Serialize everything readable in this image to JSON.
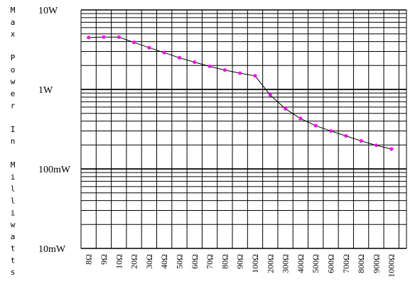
{
  "chart_data": {
    "type": "line",
    "title": "",
    "ylabel": "Max Power In Milliwatts",
    "y_scale": "log",
    "ylim": [
      "10mW",
      "10W"
    ],
    "y_ticks": [
      {
        "label": "10W",
        "value": 10
      },
      {
        "label": "1W",
        "value": 1
      },
      {
        "label": "100mW",
        "value": 0.1
      },
      {
        "label": "10mW",
        "value": 0.01
      }
    ],
    "grid": true,
    "categories": [
      "8Ω",
      "9Ω",
      "10Ω",
      "20Ω",
      "30Ω",
      "40Ω",
      "50Ω",
      "60Ω",
      "70Ω",
      "80Ω",
      "90Ω",
      "100Ω",
      "200Ω",
      "300Ω",
      "400Ω",
      "500Ω",
      "600Ω",
      "700Ω",
      "800Ω",
      "900Ω",
      "1000Ω"
    ],
    "series": [
      {
        "values": [
          4.5,
          4.55,
          4.55,
          3.9,
          3.35,
          2.9,
          2.5,
          2.2,
          1.95,
          1.75,
          1.6,
          1.48,
          0.85,
          0.57,
          0.43,
          0.35,
          0.3,
          0.26,
          0.225,
          0.198,
          0.178
        ],
        "color": "#ff00ff",
        "line_color": "#000000"
      }
    ]
  }
}
